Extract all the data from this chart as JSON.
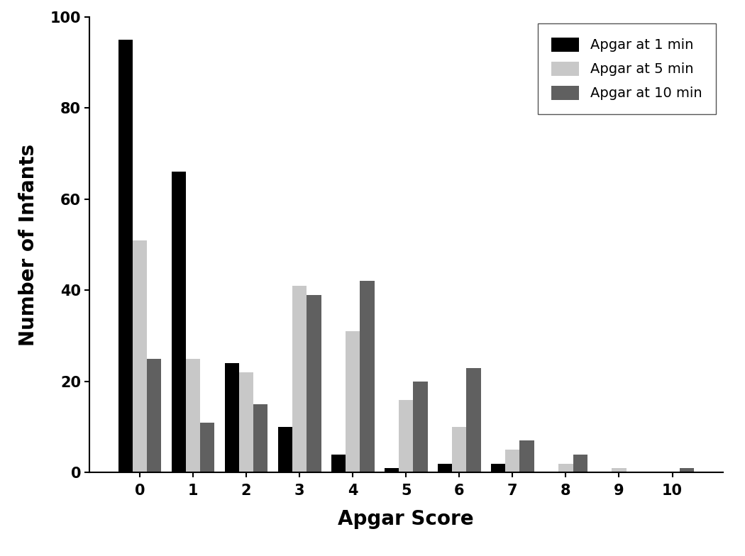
{
  "categories": [
    0,
    1,
    2,
    3,
    4,
    5,
    6,
    7,
    8,
    9,
    10
  ],
  "apgar_1min": [
    95,
    66,
    24,
    10,
    4,
    1,
    2,
    2,
    0,
    0,
    0
  ],
  "apgar_5min": [
    51,
    25,
    22,
    41,
    31,
    16,
    10,
    5,
    2,
    1,
    0
  ],
  "apgar_10min": [
    25,
    11,
    15,
    39,
    42,
    20,
    23,
    7,
    4,
    0,
    1
  ],
  "colors": {
    "1min": "#000000",
    "5min": "#c8c8c8",
    "10min": "#606060"
  },
  "legend_labels": [
    "Apgar at 1 min",
    "Apgar at 5 min",
    "Apgar at 10 min"
  ],
  "xlabel": "Apgar Score",
  "ylabel": "Number of Infants",
  "ylim": [
    0,
    100
  ],
  "yticks": [
    0,
    20,
    40,
    60,
    80,
    100
  ],
  "bar_width": 0.27,
  "label_fontsize": 20,
  "tick_fontsize": 15,
  "legend_fontsize": 14,
  "background_color": "#ffffff"
}
